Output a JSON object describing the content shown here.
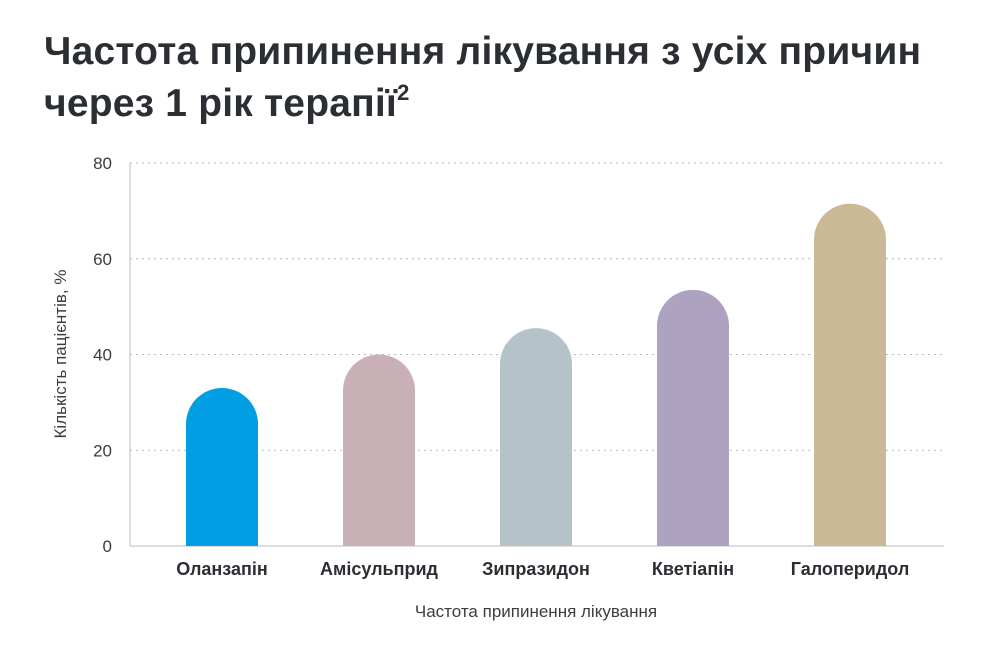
{
  "chart_data": {
    "type": "bar",
    "title": "Частота припинення лікування з усіх причин через 1 рік терапії",
    "title_superscript": "2",
    "xlabel": "Частота припинення лікування",
    "ylabel": "Кількість пацієнтів, %",
    "ylim": [
      0,
      80
    ],
    "yticks": [
      "0",
      "20",
      "40",
      "60",
      "80"
    ],
    "grid": true,
    "categories": [
      "Оланзапін",
      "Амісульприд",
      "Зипразидон",
      "Кветіапін",
      "Галоперидол"
    ],
    "values": [
      33,
      40,
      45.5,
      53.5,
      71.5
    ],
    "colors": [
      "#009fe3",
      "#c8b0b6",
      "#b5c2c8",
      "#aea2c1",
      "#cbb996"
    ]
  }
}
